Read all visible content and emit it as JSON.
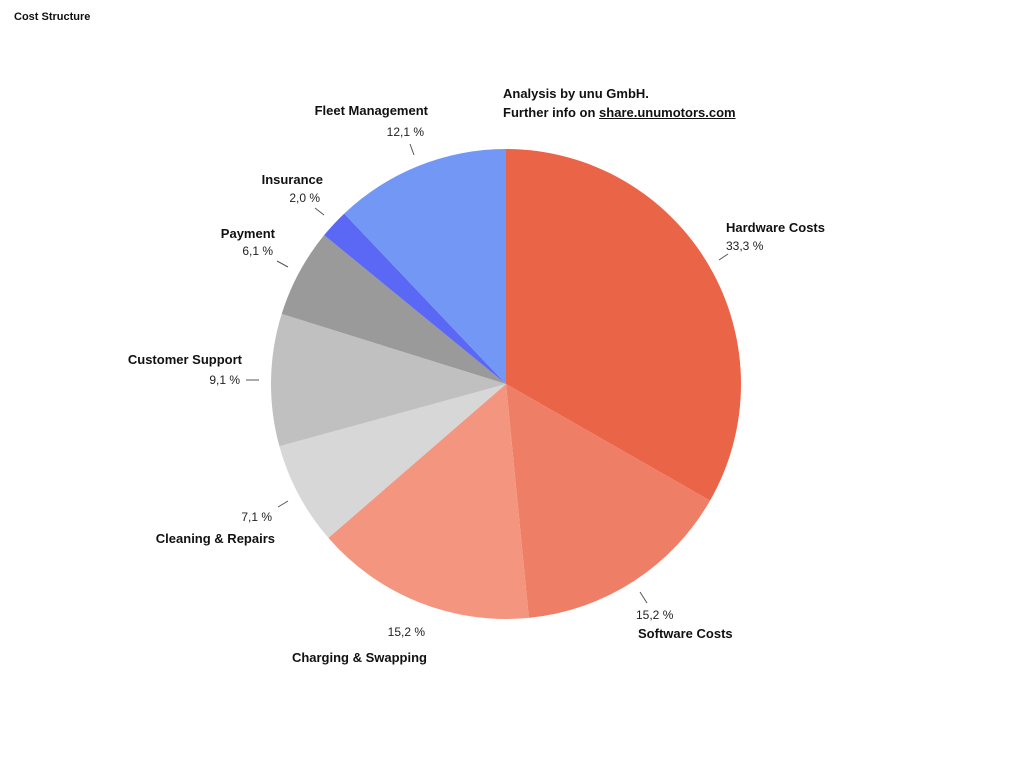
{
  "page": {
    "title": "Cost Structure"
  },
  "note": {
    "line1": "Analysis by unu GmbH.",
    "line2_prefix": "Further info on ",
    "link_text": "share.unumotors.com"
  },
  "chart_data": {
    "type": "pie",
    "title": "",
    "start_angle": "12 o'clock",
    "direction": "clockwise",
    "slices": [
      {
        "name": "Hardware Costs",
        "value": 33.3,
        "label": "33,3 %",
        "color": "#EA6548"
      },
      {
        "name": "Software Costs",
        "value": 15.2,
        "label": "15,2 %",
        "color": "#EF7E67"
      },
      {
        "name": "Charging & Swapping",
        "value": 15.2,
        "label": "15,2 %",
        "color": "#F3957F"
      },
      {
        "name": "Cleaning & Repairs",
        "value": 7.1,
        "label": "7,1 %",
        "color": "#D8D7D8"
      },
      {
        "name": "Customer Support",
        "value": 9.1,
        "label": "9,1 %",
        "color": "#C0C0C0"
      },
      {
        "name": "Payment",
        "value": 6.1,
        "label": "6,1 %",
        "color": "#9A9A9A"
      },
      {
        "name": "Insurance",
        "value": 2.0,
        "label": "2,0 %",
        "color": "#5B67F5"
      },
      {
        "name": "Fleet Management",
        "value": 12.1,
        "label": "12,1 %",
        "color": "#7397F5"
      }
    ]
  }
}
